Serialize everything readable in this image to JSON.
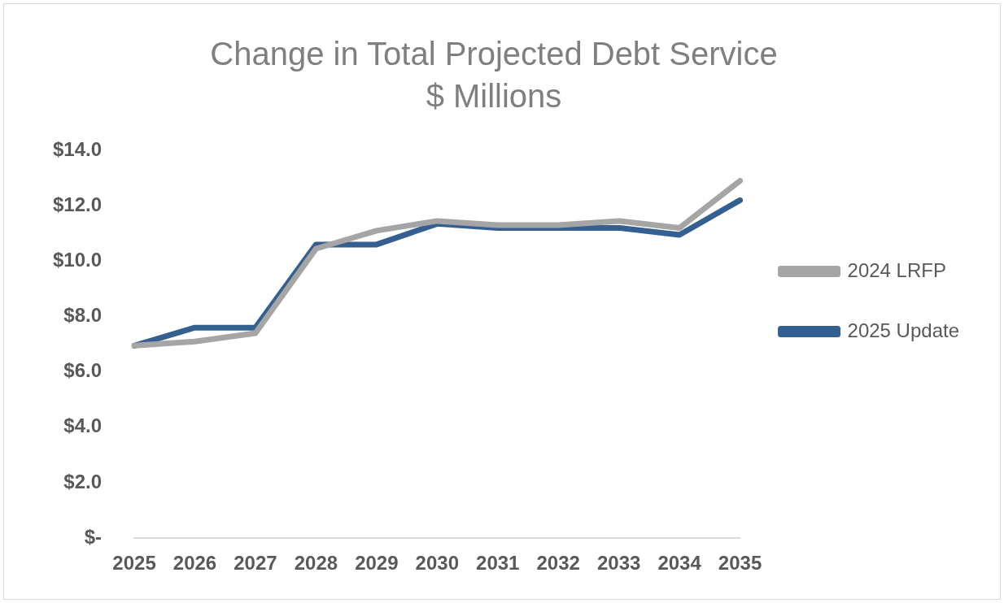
{
  "chart_data": {
    "type": "line",
    "title": "Change in Total Projected Debt Service",
    "subtitle": "$ Millions",
    "categories": [
      "2025",
      "2026",
      "2027",
      "2028",
      "2029",
      "2030",
      "2031",
      "2032",
      "2033",
      "2034",
      "2035"
    ],
    "series": [
      {
        "name": "2024 LRFP",
        "color": "#a5a5a5",
        "values": [
          6.95,
          7.1,
          7.4,
          10.45,
          11.1,
          11.45,
          11.3,
          11.3,
          11.45,
          11.2,
          12.9
        ]
      },
      {
        "name": "2025 Update",
        "color": "#335f91",
        "values": [
          6.95,
          7.6,
          7.6,
          10.6,
          10.6,
          11.35,
          11.2,
          11.2,
          11.2,
          10.95,
          12.2
        ]
      }
    ],
    "ylim": [
      0,
      14
    ],
    "yticks": [
      {
        "value": 0,
        "label": "$-"
      },
      {
        "value": 2,
        "label": "$2.0"
      },
      {
        "value": 4,
        "label": "$4.0"
      },
      {
        "value": 6,
        "label": "$6.0"
      },
      {
        "value": 8,
        "label": "$8.0"
      },
      {
        "value": 10,
        "label": "$10.0"
      },
      {
        "value": 12,
        "label": "$12.0"
      },
      {
        "value": 14,
        "label": "$14.0"
      }
    ],
    "grid": false,
    "legend": "right",
    "marker": "none",
    "line_style": "solid"
  }
}
